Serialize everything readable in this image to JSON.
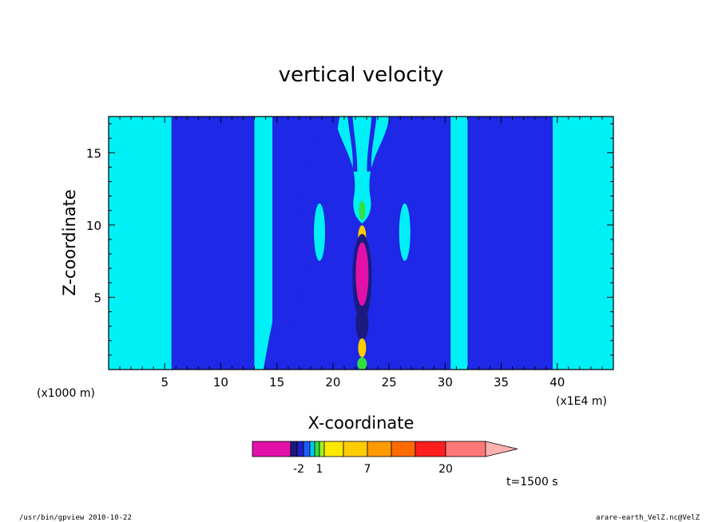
{
  "chart_data": {
    "type": "contour",
    "title": "vertical velocity",
    "xlabel": "X-coordinate",
    "ylabel": "Z-coordinate",
    "x_unit_left": "(x1000 m)",
    "x_unit_right": "(x1E4 m)",
    "xlim": [
      0,
      45
    ],
    "ylim": [
      0,
      17.5
    ],
    "x_ticks": [
      5,
      10,
      15,
      20,
      25,
      30,
      35,
      40
    ],
    "y_ticks": [
      5,
      10,
      15
    ],
    "colorbar": {
      "labels": [
        {
          "text": "-2",
          "at": 3
        },
        {
          "text": "1",
          "at": 6
        },
        {
          "text": "7",
          "at": 9
        },
        {
          "text": "20",
          "at": 12
        }
      ],
      "levels": [
        {
          "color": "#e010a8"
        },
        {
          "color": "#1a1a80"
        },
        {
          "color": "#2020c0"
        },
        {
          "color": "#1e5cff"
        },
        {
          "color": "#00c8f0"
        },
        {
          "color": "#30e040"
        },
        {
          "color": "#a0f020"
        },
        {
          "color": "#ffe800"
        },
        {
          "color": "#ffcc00"
        },
        {
          "color": "#ff9a00"
        },
        {
          "color": "#ff6a00"
        },
        {
          "color": "#ff1e1e"
        },
        {
          "color": "#ff7878"
        },
        {
          "color": "#ffb0b0"
        }
      ]
    },
    "regions": [
      {
        "name": "cyan-left",
        "x": [
          0,
          5.6
        ],
        "color": "#00f0f8"
      },
      {
        "name": "blue-left",
        "x": [
          5.6,
          13.0
        ],
        "color": "#1e28e6"
      },
      {
        "name": "cyan-mid-left",
        "x": [
          13.0,
          14.6
        ],
        "color": "#00f0f8"
      },
      {
        "name": "blue-center",
        "x": [
          14.6,
          30.5
        ],
        "color": "#1e28e6"
      },
      {
        "name": "cyan-mid-right",
        "x": [
          30.5,
          32.0
        ],
        "color": "#00f0f8"
      },
      {
        "name": "blue-right",
        "x": [
          32.0,
          39.6
        ],
        "color": "#1e28e6"
      },
      {
        "name": "cyan-right",
        "x": [
          39.6,
          45
        ],
        "color": "#00f0f8"
      }
    ]
  },
  "time_label": "t=1500 s",
  "footer_left": "/usr/bin/gpview   2010-10-22",
  "footer_right": "arare-earth_VelZ.nc@VelZ"
}
